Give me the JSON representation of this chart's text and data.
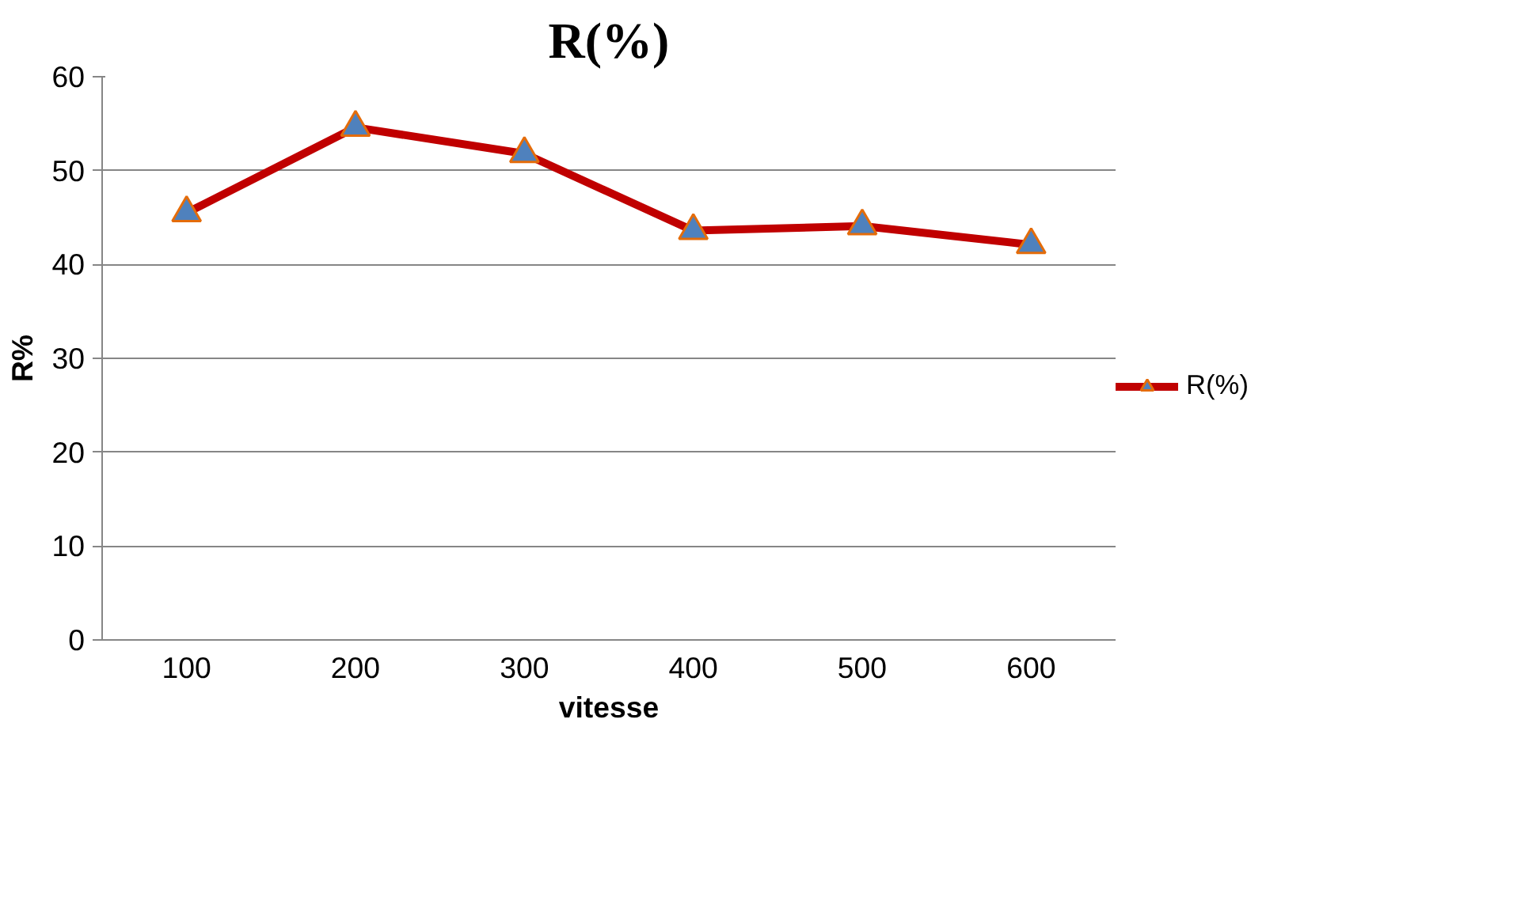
{
  "chart_data": {
    "type": "line",
    "title": "R(%)",
    "xlabel": "vitesse",
    "ylabel": "R%",
    "categories": [
      "100",
      "200",
      "300",
      "400",
      "500",
      "600"
    ],
    "series": [
      {
        "name": "R(%)",
        "color": "#c00000",
        "values": [
          45.5,
          54.6,
          51.8,
          43.6,
          44.1,
          42.1
        ]
      }
    ],
    "ylim": [
      0,
      60
    ],
    "yticks": [
      0,
      10,
      20,
      30,
      40,
      50,
      60
    ],
    "grid": "y",
    "legend": "right",
    "marker": "triangle",
    "line_style": "solid"
  }
}
